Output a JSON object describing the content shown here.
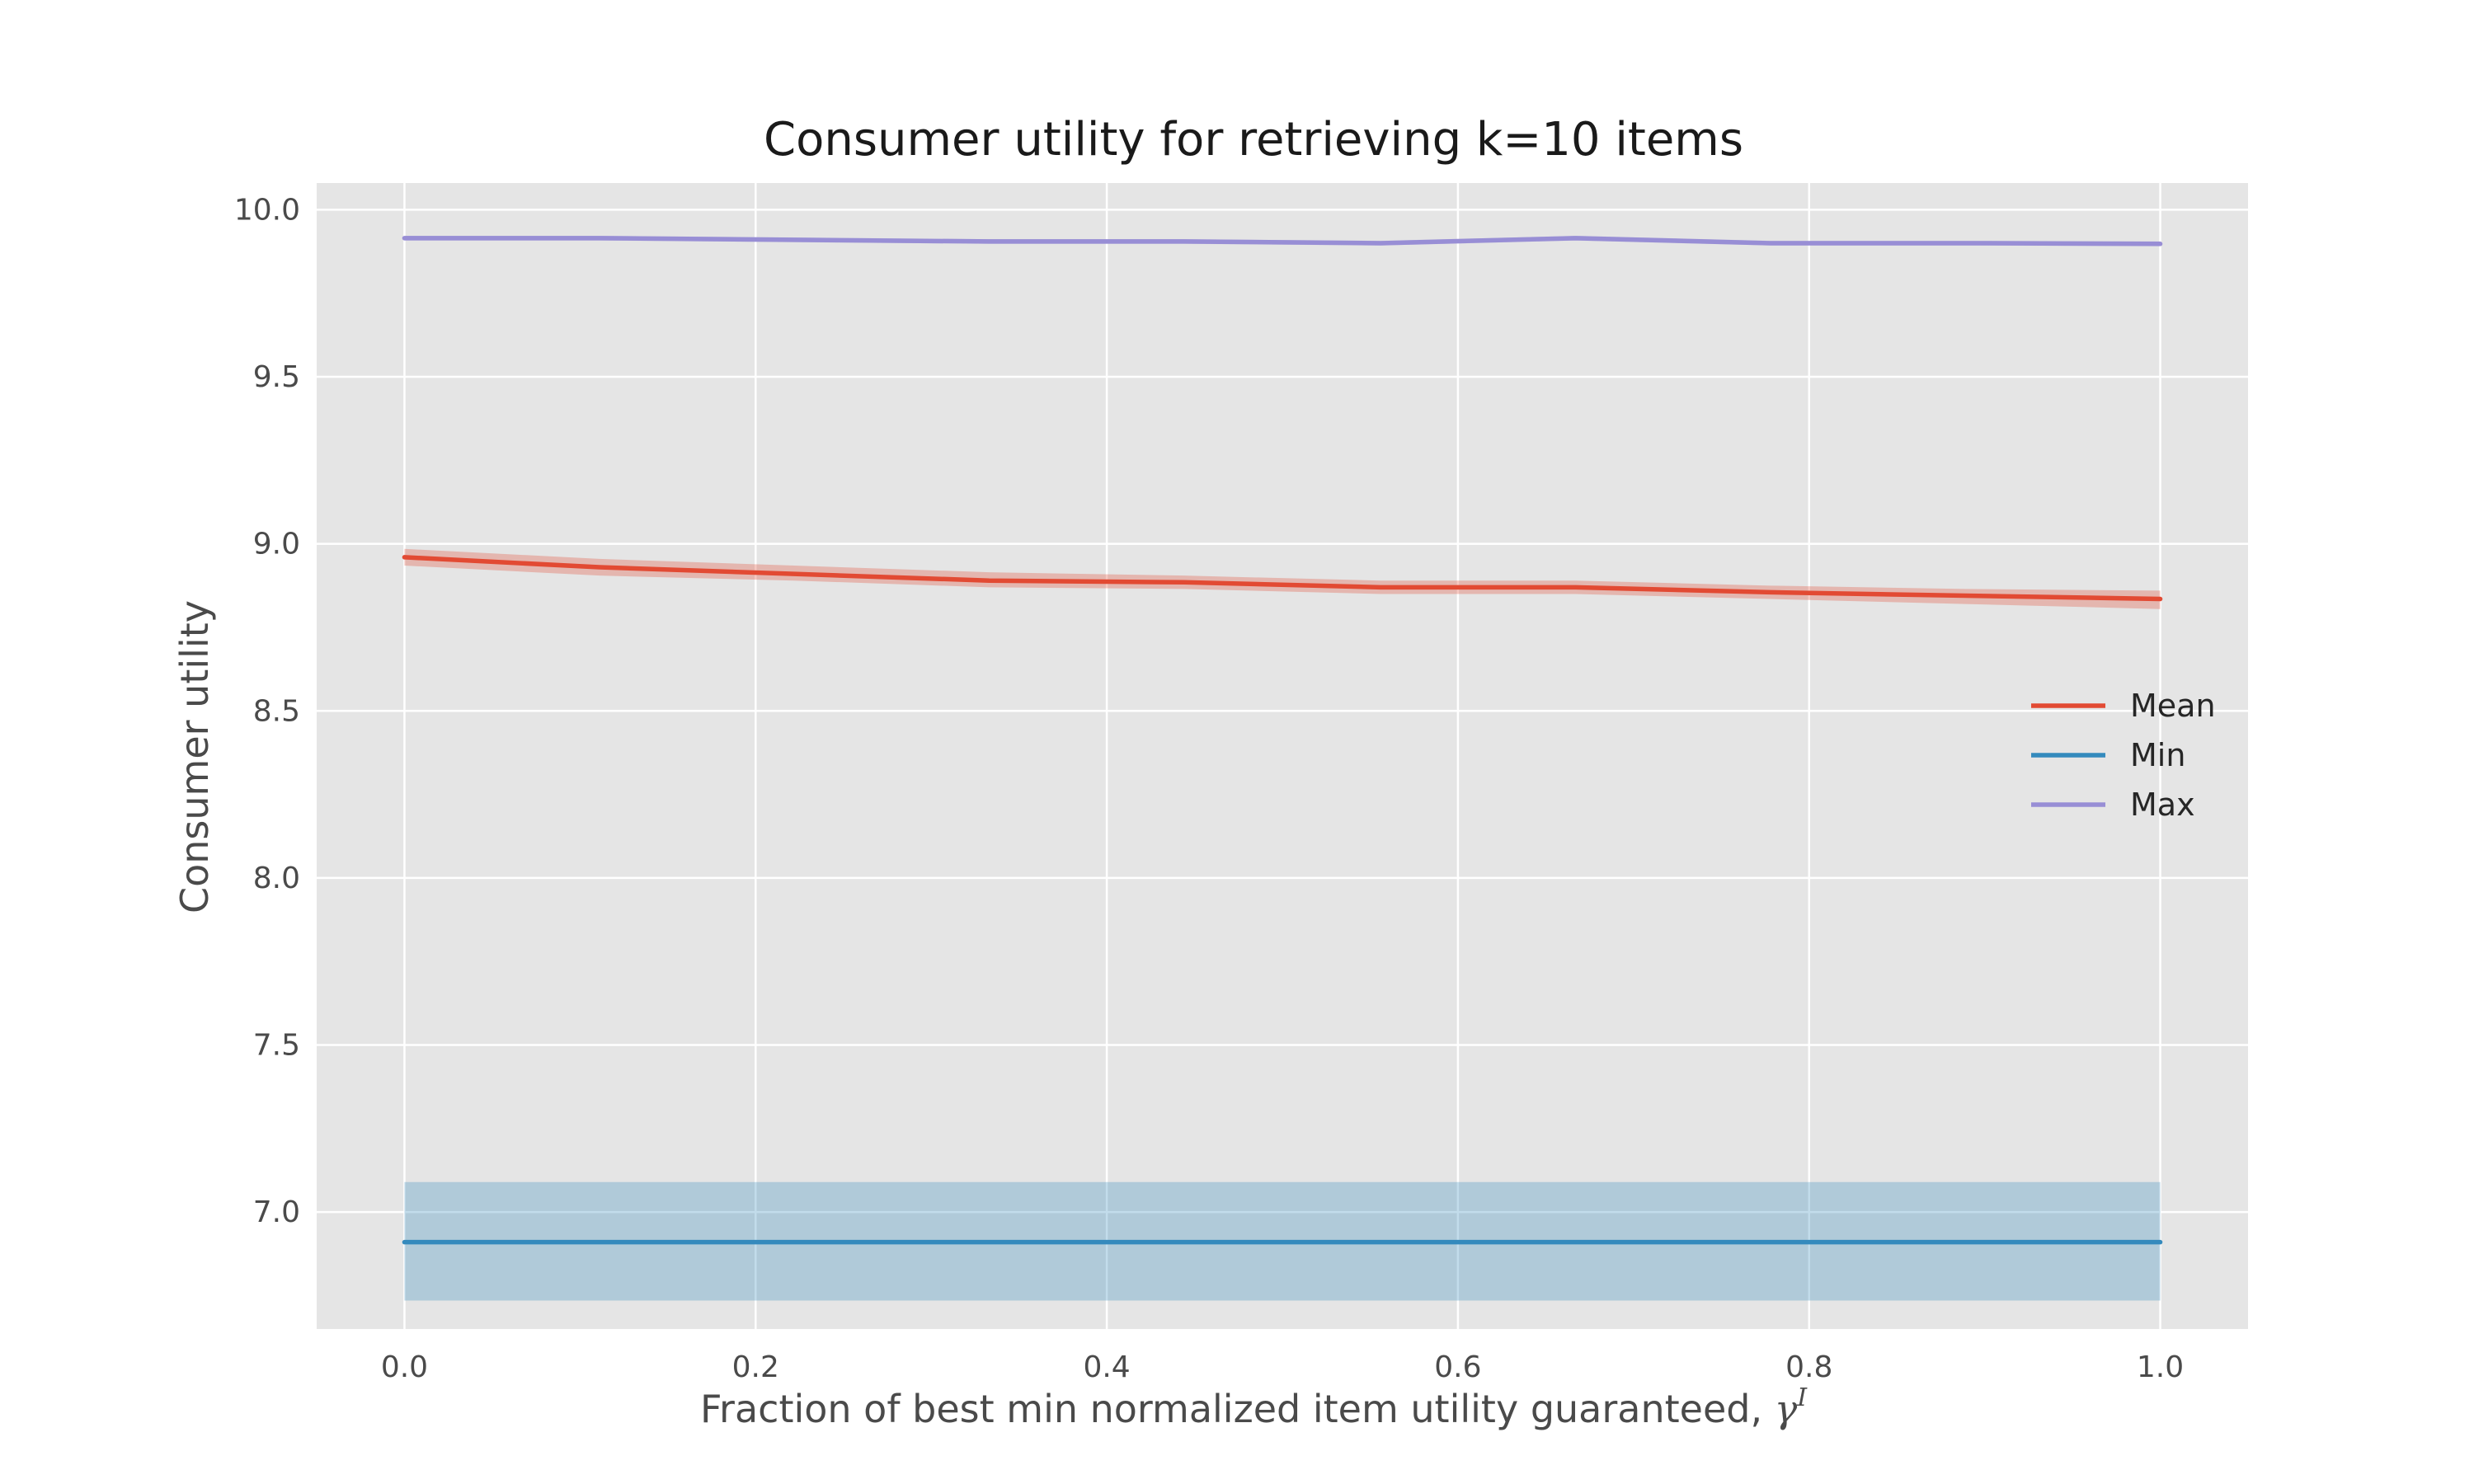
{
  "chart_data": {
    "type": "line",
    "title": "Consumer utility for retrieving k=10 items",
    "xlabel": "Fraction of best min normalized item utility guaranteed, ",
    "xlabel_symbol": "γ",
    "xlabel_symbol_sup": "I",
    "ylabel": "Consumer utility",
    "xlim": [
      -0.05,
      1.05
    ],
    "ylim": [
      6.65,
      10.08
    ],
    "xticks": [
      0.0,
      0.2,
      0.4,
      0.6,
      0.8,
      1.0
    ],
    "xtick_labels": [
      "0.0",
      "0.2",
      "0.4",
      "0.6",
      "0.8",
      "1.0"
    ],
    "yticks": [
      7.0,
      7.5,
      8.0,
      8.5,
      9.0,
      9.5,
      10.0
    ],
    "ytick_labels": [
      "7.0",
      "7.5",
      "8.0",
      "8.5",
      "9.0",
      "9.5",
      "10.0"
    ],
    "grid": true,
    "legend_position": "center-right",
    "x": [
      0.0,
      0.111,
      0.222,
      0.333,
      0.444,
      0.556,
      0.667,
      0.778,
      0.889,
      1.0
    ],
    "series": [
      {
        "name": "Mean",
        "color": "#e24a33",
        "values": [
          8.96,
          8.93,
          8.91,
          8.89,
          8.885,
          8.87,
          8.87,
          8.855,
          8.845,
          8.835
        ],
        "band_lower": [
          8.935,
          8.905,
          8.89,
          8.87,
          8.865,
          8.85,
          8.85,
          8.835,
          8.82,
          8.805
        ],
        "band_upper": [
          8.985,
          8.955,
          8.935,
          8.915,
          8.905,
          8.89,
          8.89,
          8.875,
          8.865,
          8.86
        ]
      },
      {
        "name": "Min",
        "color": "#348abd",
        "values": [
          6.91,
          6.91,
          6.91,
          6.91,
          6.91,
          6.91,
          6.91,
          6.91,
          6.91,
          6.91
        ],
        "band_lower": [
          6.735,
          6.735,
          6.735,
          6.735,
          6.735,
          6.735,
          6.735,
          6.735,
          6.735,
          6.735
        ],
        "band_upper": [
          7.09,
          7.09,
          7.09,
          7.09,
          7.09,
          7.09,
          7.09,
          7.09,
          7.09,
          7.09
        ]
      },
      {
        "name": "Max",
        "color": "#988ed5",
        "values": [
          9.915,
          9.915,
          9.91,
          9.905,
          9.905,
          9.9,
          9.915,
          9.9,
          9.9,
          9.898
        ],
        "band_lower": [
          9.908,
          9.908,
          9.903,
          9.898,
          9.898,
          9.893,
          9.908,
          9.893,
          9.893,
          9.891
        ],
        "band_upper": [
          9.922,
          9.922,
          9.917,
          9.912,
          9.912,
          9.907,
          9.922,
          9.907,
          9.907,
          9.905
        ]
      }
    ]
  },
  "colors": {
    "plot_background": "#e5e5e5",
    "grid": "#ffffff",
    "figure_background": "#ffffff"
  }
}
